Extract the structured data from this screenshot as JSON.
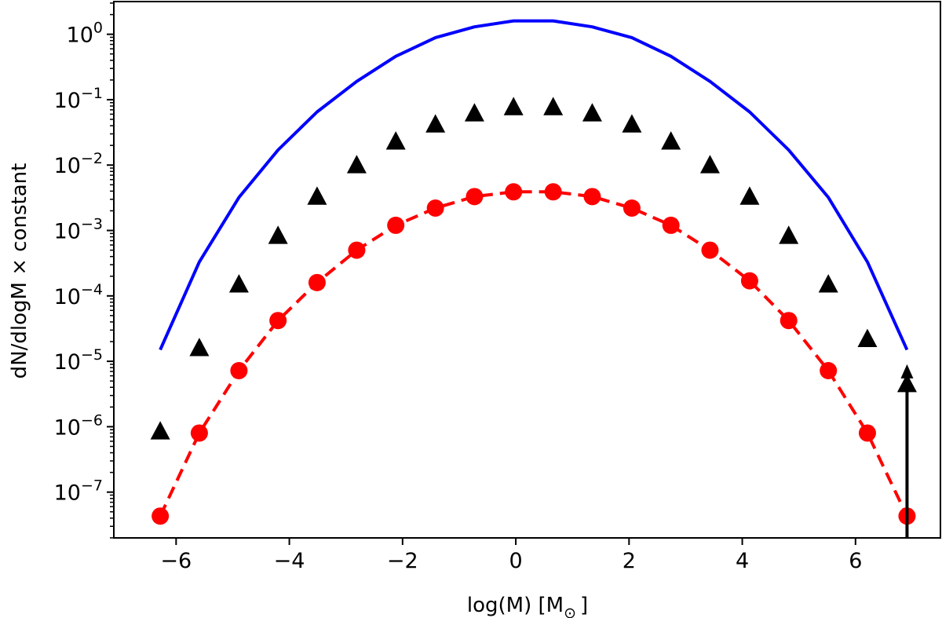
{
  "chart_data": {
    "type": "scatter",
    "xlabel": "log(M) [M",
    "xlabel_subscript": "⊙",
    "xlabel_close": "]",
    "ylabel": "dN/dlogM × constant",
    "xlim": [
      -7.1,
      7.5
    ],
    "ylim_log10": [
      -7.7,
      0.5
    ],
    "y_scale": "log",
    "x_ticks": [
      -6,
      -4,
      -2,
      0,
      2,
      4,
      6
    ],
    "x_tick_labels": [
      "−6",
      "−4",
      "−2",
      "0",
      "2",
      "4",
      "6"
    ],
    "y_tick_exponents": [
      0,
      -1,
      -2,
      -3,
      -4,
      -5,
      -6,
      -7
    ],
    "y_tick_base": "10",
    "y_tick_exponent_labels": [
      "0",
      "−1",
      "−2",
      "−3",
      "−4",
      "−5",
      "−6",
      "−7"
    ],
    "grid": false,
    "series": [
      {
        "style": "solid-line",
        "color": "#0000ff",
        "x": [
          -6.28,
          -5.59,
          -4.89,
          -4.2,
          -3.51,
          -2.81,
          -2.12,
          -1.42,
          -0.73,
          -0.04,
          0.66,
          1.35,
          2.05,
          2.74,
          3.43,
          4.13,
          4.82,
          5.52,
          6.21,
          6.91
        ],
        "y": [
          1.5e-05,
          0.00033,
          0.0032,
          0.017,
          0.065,
          0.19,
          0.46,
          0.89,
          1.3,
          1.6,
          1.6,
          1.3,
          0.89,
          0.46,
          0.19,
          0.065,
          0.017,
          0.0032,
          0.00033,
          1.5e-05
        ]
      },
      {
        "style": "triangle-markers",
        "color": "#000000",
        "x": [
          -6.28,
          -5.59,
          -4.89,
          -4.2,
          -3.51,
          -2.81,
          -2.12,
          -1.42,
          -0.73,
          -0.04,
          0.66,
          1.35,
          2.05,
          2.74,
          3.43,
          4.13,
          4.82,
          5.52,
          6.21,
          6.91
        ],
        "y": [
          8.5e-07,
          1.6e-05,
          0.00015,
          0.00083,
          0.0033,
          0.01,
          0.023,
          0.042,
          0.062,
          0.077,
          0.077,
          0.062,
          0.042,
          0.023,
          0.01,
          0.0033,
          0.00083,
          0.00015,
          2.2e-05,
          4.5e-06
        ]
      },
      {
        "style": "dashed-line-circle-markers",
        "color": "#ff0000",
        "x": [
          -6.28,
          -5.59,
          -4.89,
          -4.2,
          -3.51,
          -2.81,
          -2.12,
          -1.42,
          -0.73,
          -0.04,
          0.66,
          1.35,
          2.05,
          2.74,
          3.43,
          4.13,
          4.82,
          5.52,
          6.21,
          6.91
        ],
        "y": [
          4.3e-08,
          8e-07,
          7.2e-06,
          4.2e-05,
          0.00016,
          0.0005,
          0.0012,
          0.0022,
          0.0033,
          0.0039,
          0.0039,
          0.0033,
          0.0022,
          0.0012,
          0.0005,
          0.00017,
          4.2e-05,
          7.2e-06,
          8e-07,
          4.3e-08
        ]
      }
    ],
    "annotation": {
      "type": "vertical-arrow",
      "color": "#000000",
      "x": 6.91,
      "y_from_log10": -7.7,
      "y_to": 9e-06
    }
  }
}
